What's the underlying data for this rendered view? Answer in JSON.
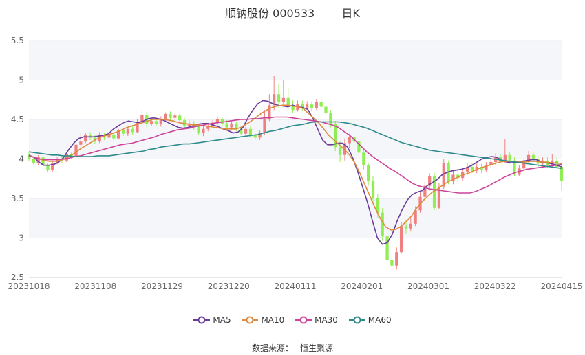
{
  "header": {
    "title": "顺钠股份 000533",
    "period": "日K"
  },
  "source": {
    "label": "数据来源：",
    "provider": "恒生聚源"
  },
  "colors": {
    "up": "#f08080",
    "down": "#90ee52",
    "MA5": "#6a3d9a",
    "MA10": "#e08a3c",
    "MA30": "#cc4499",
    "MA60": "#2e8b8b"
  },
  "chart_data": {
    "type": "candlestick",
    "yticks": [
      "2.5",
      "3",
      "3.5",
      "4",
      "4.5",
      "5",
      "5.5"
    ],
    "ylim": [
      2.5,
      5.5
    ],
    "xticks": [
      "20231018",
      "20231108",
      "20231129",
      "20231220",
      "20240111",
      "20240201",
      "20240301",
      "20240322",
      "20240415"
    ],
    "legend": [
      "MA5",
      "MA10",
      "MA30",
      "MA60"
    ],
    "candles": [
      [
        4.05,
        4.0,
        4.08,
        3.97
      ],
      [
        4.0,
        3.95,
        4.03,
        3.93
      ],
      [
        3.95,
        4.02,
        4.05,
        3.92
      ],
      [
        4.02,
        3.92,
        4.05,
        3.9
      ],
      [
        3.92,
        3.86,
        3.95,
        3.83
      ],
      [
        3.86,
        3.95,
        3.98,
        3.84
      ],
      [
        3.95,
        4.0,
        4.03,
        3.93
      ],
      [
        4.0,
        3.98,
        4.04,
        3.95
      ],
      [
        3.98,
        4.06,
        4.09,
        3.96
      ],
      [
        4.06,
        4.03,
        4.08,
        4.0
      ],
      [
        4.03,
        4.18,
        4.22,
        4.02
      ],
      [
        4.18,
        4.22,
        4.33,
        4.15
      ],
      [
        4.22,
        4.3,
        4.33,
        4.2
      ],
      [
        4.3,
        4.27,
        4.34,
        4.24
      ],
      [
        4.27,
        4.22,
        4.3,
        4.19
      ],
      [
        4.22,
        4.3,
        4.34,
        4.2
      ],
      [
        4.3,
        4.27,
        4.33,
        4.24
      ],
      [
        4.27,
        4.31,
        4.34,
        4.24
      ],
      [
        4.31,
        4.26,
        4.34,
        4.23
      ],
      [
        4.26,
        4.36,
        4.38,
        4.25
      ],
      [
        4.36,
        4.32,
        4.4,
        4.29
      ],
      [
        4.32,
        4.38,
        4.41,
        4.29
      ],
      [
        4.38,
        4.34,
        4.42,
        4.3
      ],
      [
        4.34,
        4.47,
        4.5,
        4.33
      ],
      [
        4.47,
        4.56,
        4.62,
        4.45
      ],
      [
        4.56,
        4.44,
        4.6,
        4.4
      ],
      [
        4.44,
        4.48,
        4.52,
        4.42
      ],
      [
        4.48,
        4.44,
        4.52,
        4.41
      ],
      [
        4.44,
        4.5,
        4.54,
        4.41
      ],
      [
        4.5,
        4.57,
        4.59,
        4.47
      ],
      [
        4.57,
        4.52,
        4.6,
        4.48
      ],
      [
        4.52,
        4.55,
        4.58,
        4.49
      ],
      [
        4.55,
        4.49,
        4.58,
        4.46
      ],
      [
        4.49,
        4.42,
        4.52,
        4.4
      ],
      [
        4.42,
        4.45,
        4.49,
        4.4
      ],
      [
        4.45,
        4.41,
        4.48,
        4.37
      ],
      [
        4.41,
        4.33,
        4.44,
        4.3
      ],
      [
        4.33,
        4.38,
        4.42,
        4.29
      ],
      [
        4.38,
        4.42,
        4.45,
        4.35
      ],
      [
        4.42,
        4.46,
        4.49,
        4.4
      ],
      [
        4.46,
        4.5,
        4.54,
        4.43
      ],
      [
        4.5,
        4.45,
        4.53,
        4.42
      ],
      [
        4.45,
        4.4,
        4.49,
        4.36
      ],
      [
        4.4,
        4.44,
        4.47,
        4.36
      ],
      [
        4.44,
        4.38,
        4.47,
        4.35
      ],
      [
        4.38,
        4.32,
        4.41,
        4.3
      ],
      [
        4.32,
        4.38,
        4.41,
        4.29
      ],
      [
        4.38,
        4.3,
        4.41,
        4.27
      ],
      [
        4.3,
        4.27,
        4.33,
        4.24
      ],
      [
        4.27,
        4.33,
        4.36,
        4.24
      ],
      [
        4.33,
        4.5,
        4.62,
        4.31
      ],
      [
        4.5,
        4.68,
        4.82,
        4.48
      ],
      [
        4.68,
        4.82,
        5.05,
        4.62
      ],
      [
        4.82,
        4.72,
        4.95,
        4.64
      ],
      [
        4.72,
        4.78,
        5.0,
        4.66
      ],
      [
        4.78,
        4.68,
        4.9,
        4.62
      ],
      [
        4.68,
        4.62,
        4.74,
        4.58
      ],
      [
        4.62,
        4.7,
        4.74,
        4.6
      ],
      [
        4.7,
        4.65,
        4.74,
        4.61
      ],
      [
        4.65,
        4.69,
        4.73,
        4.62
      ],
      [
        4.69,
        4.64,
        4.73,
        4.6
      ],
      [
        4.64,
        4.72,
        4.76,
        4.62
      ],
      [
        4.72,
        4.66,
        4.78,
        4.62
      ],
      [
        4.66,
        4.58,
        4.7,
        4.55
      ],
      [
        4.58,
        4.44,
        4.62,
        4.4
      ],
      [
        4.44,
        4.15,
        4.48,
        4.1
      ],
      [
        4.15,
        4.05,
        4.22,
        3.96
      ],
      [
        4.05,
        4.2,
        4.26,
        3.98
      ],
      [
        4.2,
        4.28,
        4.32,
        4.14
      ],
      [
        4.28,
        4.22,
        4.32,
        4.15
      ],
      [
        4.22,
        4.08,
        4.26,
        4.04
      ],
      [
        4.08,
        3.92,
        4.12,
        3.86
      ],
      [
        3.92,
        3.72,
        3.95,
        3.66
      ],
      [
        3.72,
        3.5,
        3.78,
        3.45
      ],
      [
        3.5,
        3.32,
        3.56,
        3.25
      ],
      [
        3.32,
        3.02,
        3.38,
        2.96
      ],
      [
        3.02,
        2.72,
        3.06,
        2.62
      ],
      [
        2.72,
        2.65,
        2.82,
        2.58
      ],
      [
        2.65,
        2.82,
        2.88,
        2.6
      ],
      [
        2.82,
        3.15,
        3.2,
        2.8
      ],
      [
        3.15,
        3.12,
        3.22,
        3.05
      ],
      [
        3.12,
        3.18,
        3.25,
        3.08
      ],
      [
        3.18,
        3.35,
        3.4,
        3.15
      ],
      [
        3.35,
        3.52,
        3.58,
        3.32
      ],
      [
        3.52,
        3.66,
        3.72,
        3.48
      ],
      [
        3.66,
        3.78,
        3.82,
        3.6
      ],
      [
        3.78,
        3.38,
        3.82,
        3.35
      ],
      [
        3.38,
        3.65,
        3.7,
        3.36
      ],
      [
        3.65,
        3.95,
        4.0,
        3.62
      ],
      [
        3.95,
        3.72,
        3.98,
        3.68
      ],
      [
        3.72,
        3.8,
        3.86,
        3.68
      ],
      [
        3.8,
        3.76,
        3.88,
        3.7
      ],
      [
        3.76,
        3.84,
        3.88,
        3.72
      ],
      [
        3.84,
        3.9,
        3.95,
        3.8
      ],
      [
        3.9,
        3.85,
        3.94,
        3.82
      ],
      [
        3.85,
        3.9,
        3.94,
        3.82
      ],
      [
        3.9,
        3.86,
        3.94,
        3.82
      ],
      [
        3.86,
        3.92,
        3.96,
        3.84
      ],
      [
        3.92,
        3.96,
        4.0,
        3.88
      ],
      [
        3.96,
        4.03,
        4.07,
        3.92
      ],
      [
        4.03,
        3.97,
        4.06,
        3.94
      ],
      [
        3.97,
        4.05,
        4.25,
        3.95
      ],
      [
        4.05,
        3.98,
        4.08,
        3.94
      ],
      [
        3.98,
        3.8,
        4.02,
        3.78
      ],
      [
        3.8,
        3.88,
        3.92,
        3.78
      ],
      [
        3.88,
        3.98,
        4.0,
        3.85
      ],
      [
        3.98,
        4.05,
        4.1,
        3.95
      ],
      [
        4.05,
        4.0,
        4.08,
        3.96
      ],
      [
        4.0,
        3.94,
        4.04,
        3.9
      ],
      [
        3.94,
        3.98,
        4.02,
        3.9
      ],
      [
        3.98,
        3.92,
        4.02,
        3.89
      ],
      [
        3.92,
        3.98,
        4.06,
        3.9
      ],
      [
        3.98,
        3.9,
        4.02,
        3.88
      ],
      [
        3.9,
        3.72,
        3.92,
        3.6
      ]
    ],
    "ma": {
      "MA5": [
        4.05,
        4.02,
        3.96,
        3.92,
        3.92,
        3.93,
        3.96,
        4.02,
        4.12,
        4.2,
        4.26,
        4.28,
        4.28,
        4.28,
        4.29,
        4.3,
        4.32,
        4.38,
        4.42,
        4.46,
        4.48,
        4.47,
        4.46,
        4.48,
        4.51,
        4.52,
        4.51,
        4.49,
        4.46,
        4.43,
        4.4,
        4.39,
        4.4,
        4.42,
        4.44,
        4.45,
        4.45,
        4.43,
        4.41,
        4.38,
        4.36,
        4.33,
        4.34,
        4.4,
        4.52,
        4.62,
        4.7,
        4.74,
        4.73,
        4.7,
        4.68,
        4.67,
        4.66,
        4.68,
        4.66,
        4.65,
        4.63,
        4.52,
        4.38,
        4.24,
        4.18,
        4.18,
        4.2,
        4.2,
        4.15,
        4.02,
        3.85,
        3.65,
        3.45,
        3.22,
        3.0,
        2.92,
        2.94,
        3.05,
        3.22,
        3.36,
        3.48,
        3.55,
        3.58,
        3.6,
        3.66,
        3.7,
        3.74,
        3.8,
        3.83,
        3.85,
        3.86,
        3.87,
        3.89,
        3.92,
        3.96,
        4.0,
        4.02,
        4.03,
        4.02,
        3.98,
        3.96,
        3.95,
        3.96,
        3.97,
        3.98,
        3.99,
        3.99,
        3.96,
        3.95,
        3.94,
        3.92,
        3.9
      ],
      "MA10": [
        4.04,
        4.02,
        4.0,
        3.98,
        3.97,
        3.97,
        3.98,
        4.0,
        4.04,
        4.08,
        4.13,
        4.17,
        4.21,
        4.25,
        4.28,
        4.3,
        4.32,
        4.34,
        4.37,
        4.4,
        4.42,
        4.44,
        4.46,
        4.48,
        4.5,
        4.5,
        4.5,
        4.49,
        4.48,
        4.46,
        4.45,
        4.44,
        4.43,
        4.43,
        4.42,
        4.41,
        4.4,
        4.39,
        4.38,
        4.38,
        4.38,
        4.4,
        4.44,
        4.48,
        4.53,
        4.58,
        4.62,
        4.65,
        4.67,
        4.68,
        4.68,
        4.67,
        4.66,
        4.64,
        4.58,
        4.52,
        4.46,
        4.38,
        4.3,
        4.24,
        4.18,
        4.12,
        4.05,
        3.95,
        3.82,
        3.67,
        3.52,
        3.37,
        3.24,
        3.14,
        3.1,
        3.11,
        3.15,
        3.21,
        3.28,
        3.38,
        3.46,
        3.52,
        3.58,
        3.62,
        3.67,
        3.71,
        3.74,
        3.77,
        3.8,
        3.82,
        3.85,
        3.88,
        3.9,
        3.92,
        3.94,
        3.96,
        3.97,
        3.97,
        3.97,
        3.96,
        3.96,
        3.97,
        3.97,
        3.96,
        3.96,
        3.95,
        3.95,
        3.94
      ],
      "MA30": [
        4.04,
        4.02,
        4.0,
        3.99,
        3.99,
        3.99,
        4.0,
        4.01,
        4.03,
        4.04,
        4.06,
        4.08,
        4.1,
        4.12,
        4.14,
        4.16,
        4.18,
        4.19,
        4.2,
        4.22,
        4.24,
        4.26,
        4.28,
        4.31,
        4.33,
        4.35,
        4.37,
        4.38,
        4.39,
        4.41,
        4.42,
        4.44,
        4.45,
        4.46,
        4.47,
        4.48,
        4.49,
        4.5,
        4.5,
        4.51,
        4.51,
        4.52,
        4.52,
        4.53,
        4.53,
        4.53,
        4.52,
        4.51,
        4.5,
        4.49,
        4.48,
        4.47,
        4.45,
        4.43,
        4.4,
        4.35,
        4.3,
        4.23,
        4.16,
        4.09,
        4.03,
        3.98,
        3.93,
        3.88,
        3.84,
        3.79,
        3.74,
        3.69,
        3.66,
        3.64,
        3.62,
        3.61,
        3.6,
        3.59,
        3.58,
        3.57,
        3.57,
        3.57,
        3.59,
        3.62,
        3.65,
        3.69,
        3.73,
        3.77,
        3.8,
        3.83,
        3.85,
        3.87,
        3.88,
        3.89,
        3.9,
        3.91,
        3.92,
        3.93
      ],
      "MA60": [
        4.09,
        4.08,
        4.07,
        4.06,
        4.05,
        4.05,
        4.04,
        4.04,
        4.03,
        4.03,
        4.03,
        4.03,
        4.04,
        4.04,
        4.04,
        4.05,
        4.06,
        4.07,
        4.08,
        4.09,
        4.1,
        4.12,
        4.13,
        4.15,
        4.16,
        4.17,
        4.18,
        4.19,
        4.19,
        4.2,
        4.21,
        4.22,
        4.23,
        4.24,
        4.25,
        4.26,
        4.27,
        4.28,
        4.29,
        4.3,
        4.31,
        4.33,
        4.35,
        4.36,
        4.38,
        4.4,
        4.42,
        4.43,
        4.44,
        4.46,
        4.47,
        4.47,
        4.47,
        4.47,
        4.47,
        4.46,
        4.45,
        4.43,
        4.41,
        4.39,
        4.36,
        4.33,
        4.3,
        4.27,
        4.24,
        4.21,
        4.19,
        4.17,
        4.15,
        4.13,
        4.11,
        4.1,
        4.09,
        4.08,
        4.07,
        4.06,
        4.05,
        4.04,
        4.03,
        4.02,
        4.01,
        4.0,
        3.99,
        3.98,
        3.97,
        3.96,
        3.95,
        3.94,
        3.93,
        3.92,
        3.91,
        3.9,
        3.89,
        3.88
      ]
    }
  }
}
